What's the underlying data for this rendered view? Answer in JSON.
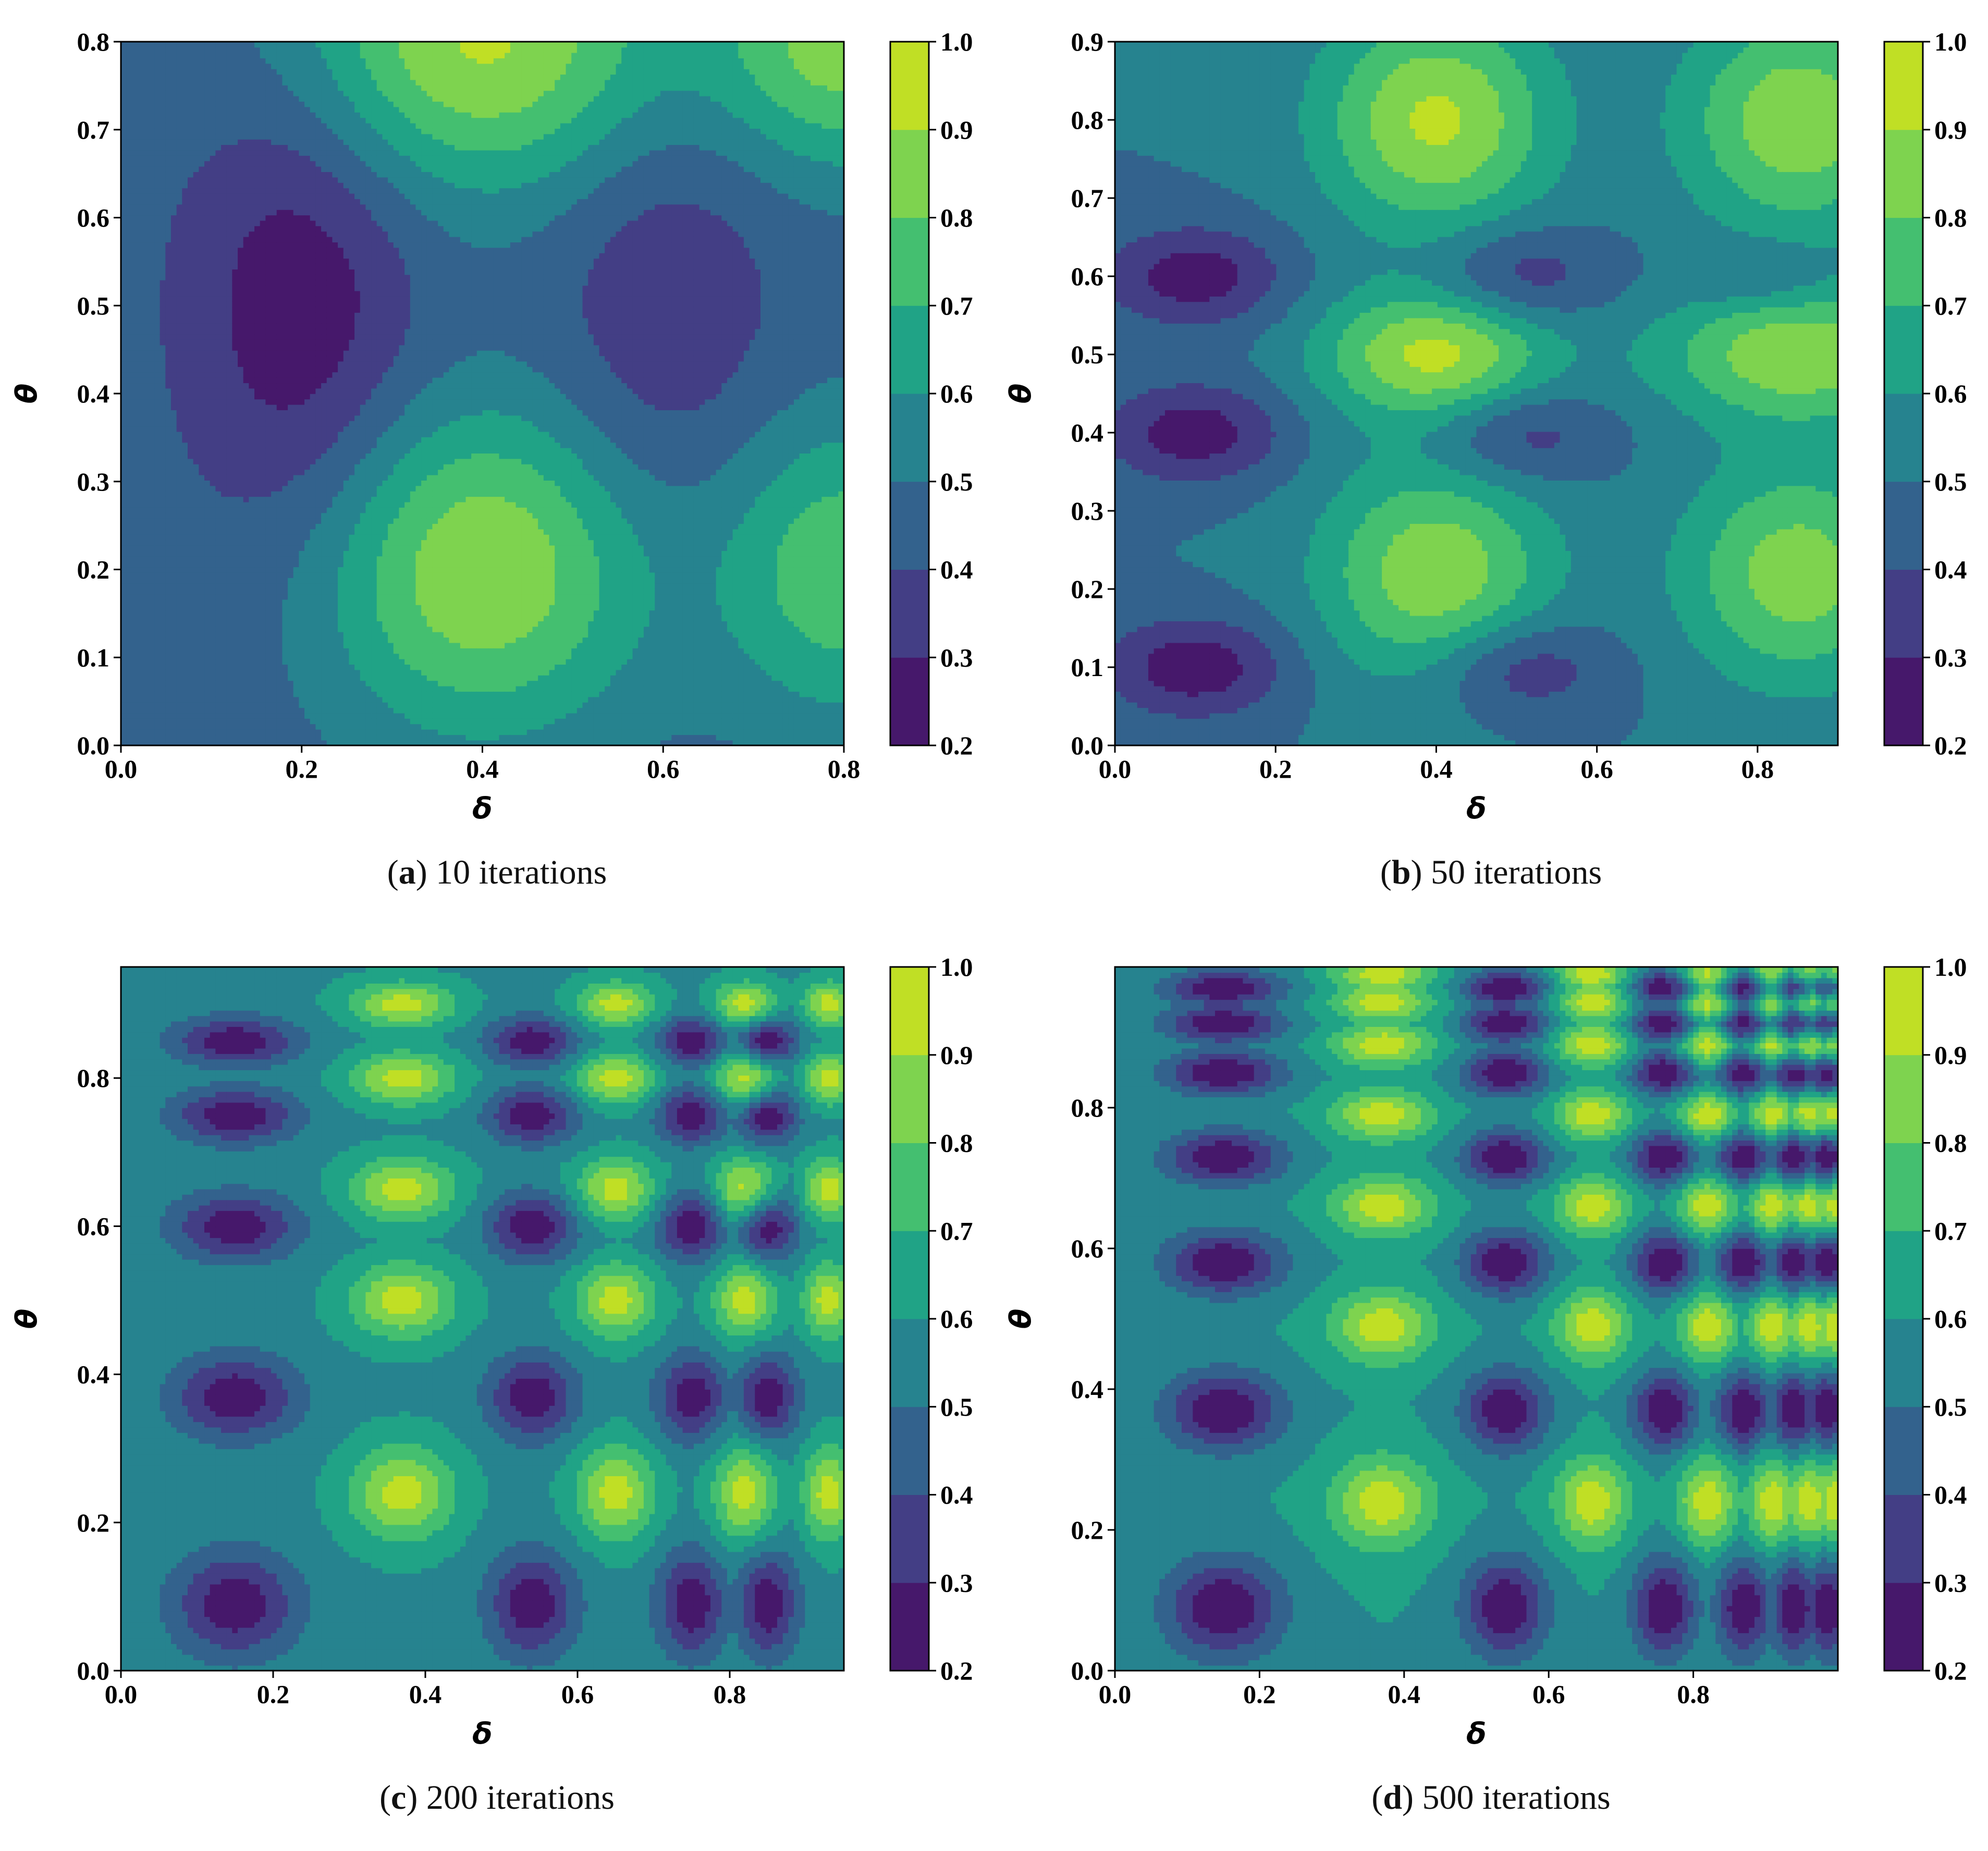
{
  "colormap": {
    "levels": [
      0.2,
      0.3,
      0.4,
      0.5,
      0.6,
      0.7,
      0.8,
      0.9,
      1.0
    ],
    "colors": [
      "#46186b",
      "#433e85",
      "#33628d",
      "#26838f",
      "#20a386",
      "#44bf70",
      "#7ed34f",
      "#c0df25"
    ],
    "lines": [
      "#47297a",
      "#3d4f8b",
      "#2d728e",
      "#21938b",
      "#35b479",
      "#65cb5e",
      "#a8db34",
      "#dde318"
    ]
  },
  "chart_data": [
    {
      "type": "contour",
      "panel_letter": "a",
      "caption_text": "10 iterations",
      "xlabel": "δ",
      "ylabel": "θ",
      "xlim": [
        0.0,
        0.8
      ],
      "ylim": [
        0.0,
        0.8
      ],
      "xticks": [
        "0.0",
        "0.2",
        "0.4",
        "0.6",
        "0.8"
      ],
      "yticks": [
        "0.0",
        "0.1",
        "0.2",
        "0.3",
        "0.4",
        "0.5",
        "0.6",
        "0.7",
        "0.8"
      ],
      "colorbar_ticks": [
        "0.2",
        "0.3",
        "0.4",
        "0.5",
        "0.6",
        "0.7",
        "0.8",
        "0.9",
        "1.0"
      ],
      "background_value": 0.45,
      "features": [
        {
          "x": 0.2,
          "y": 0.5,
          "sx": 0.09,
          "sy": 0.2,
          "v": 0.22
        },
        {
          "x": 0.6,
          "y": 0.5,
          "sx": 0.09,
          "sy": 0.2,
          "v": 0.31
        },
        {
          "x": 0.4,
          "y": 0.2,
          "sx": 0.13,
          "sy": 0.13,
          "v": 0.9
        },
        {
          "x": 0.4,
          "y": 0.8,
          "sx": 0.15,
          "sy": 0.12,
          "v": 0.92
        },
        {
          "x": 0.8,
          "y": 0.2,
          "sx": 0.1,
          "sy": 0.12,
          "v": 0.78
        },
        {
          "x": 0.8,
          "y": 0.8,
          "sx": 0.1,
          "sy": 0.1,
          "v": 0.85
        }
      ],
      "contour_lines": false
    },
    {
      "type": "contour",
      "panel_letter": "b",
      "caption_text": "50 iterations",
      "xlabel": "δ",
      "ylabel": "θ",
      "xlim": [
        0.0,
        0.9
      ],
      "ylim": [
        0.0,
        0.9
      ],
      "xticks": [
        "0.0",
        "0.2",
        "0.4",
        "0.6",
        "0.8"
      ],
      "yticks": [
        "0.0",
        "0.1",
        "0.2",
        "0.3",
        "0.4",
        "0.5",
        "0.6",
        "0.7",
        "0.8",
        "0.9"
      ],
      "colorbar_ticks": [
        "0.2",
        "0.3",
        "0.4",
        "0.5",
        "0.6",
        "0.7",
        "0.8",
        "0.9",
        "1.0"
      ],
      "background_value": 0.5,
      "features": [
        {
          "x": 0.1,
          "y": 0.1,
          "sx": 0.08,
          "sy": 0.045,
          "v": 0.23
        },
        {
          "x": 0.1,
          "y": 0.4,
          "sx": 0.08,
          "sy": 0.045,
          "v": 0.24
        },
        {
          "x": 0.1,
          "y": 0.6,
          "sx": 0.08,
          "sy": 0.045,
          "v": 0.24
        },
        {
          "x": 0.5,
          "y": 0.1,
          "sx": 0.08,
          "sy": 0.045,
          "v": 0.28
        },
        {
          "x": 0.5,
          "y": 0.4,
          "sx": 0.08,
          "sy": 0.045,
          "v": 0.3
        },
        {
          "x": 0.5,
          "y": 0.6,
          "sx": 0.08,
          "sy": 0.045,
          "v": 0.3
        },
        {
          "x": 0.8,
          "y": 0.6,
          "sx": 0.06,
          "sy": 0.03,
          "v": 0.38
        },
        {
          "x": 0.4,
          "y": 0.5,
          "sx": 0.1,
          "sy": 0.06,
          "v": 0.93
        },
        {
          "x": 0.4,
          "y": 0.22,
          "sx": 0.1,
          "sy": 0.1,
          "v": 0.88
        },
        {
          "x": 0.4,
          "y": 0.8,
          "sx": 0.1,
          "sy": 0.1,
          "v": 0.92
        },
        {
          "x": 0.85,
          "y": 0.5,
          "sx": 0.12,
          "sy": 0.06,
          "v": 0.88
        },
        {
          "x": 0.85,
          "y": 0.22,
          "sx": 0.1,
          "sy": 0.1,
          "v": 0.86
        },
        {
          "x": 0.85,
          "y": 0.8,
          "sx": 0.1,
          "sy": 0.1,
          "v": 0.88
        }
      ],
      "contour_lines": false
    },
    {
      "type": "contour",
      "panel_letter": "c",
      "caption_text": "200 iterations",
      "xlabel": "δ",
      "ylabel": "θ",
      "xlim": [
        0.0,
        0.95
      ],
      "ylim": [
        0.0,
        0.95
      ],
      "xticks": [
        "0.0",
        "0.2",
        "0.4",
        "0.6",
        "0.8"
      ],
      "yticks": [
        "0.0",
        "0.2",
        "0.4",
        "0.6",
        "0.8"
      ],
      "colorbar_ticks": [
        "0.2",
        "0.3",
        "0.4",
        "0.5",
        "0.6",
        "0.7",
        "0.8",
        "0.9",
        "1.0"
      ],
      "background_value": 0.58,
      "xlows": [
        0.15,
        0.54,
        0.75,
        0.85
      ],
      "xhighs": [
        0.37,
        0.65,
        0.82,
        0.93
      ],
      "ylows": [
        0.09,
        0.37,
        0.6,
        0.75,
        0.85
      ],
      "yhighs": [
        0.24,
        0.5,
        0.65,
        0.8,
        0.9
      ],
      "low_value": 0.22,
      "high_value": 0.95,
      "contour_lines": true
    },
    {
      "type": "contour",
      "panel_letter": "d",
      "caption_text": "500 iterations",
      "xlabel": "δ",
      "ylabel": "θ",
      "xlim": [
        0.0,
        1.0
      ],
      "ylim": [
        0.0,
        1.0
      ],
      "xticks": [
        "0.0",
        "0.2",
        "0.4",
        "0.6",
        "0.8"
      ],
      "yticks": [
        "0.0",
        "0.2",
        "0.4",
        "0.6",
        "0.8"
      ],
      "colorbar_ticks": [
        "0.2",
        "0.3",
        "0.4",
        "0.5",
        "0.6",
        "0.7",
        "0.8",
        "0.9",
        "1.0"
      ],
      "background_value": 0.6,
      "xlows": [
        0.15,
        0.54,
        0.76,
        0.87,
        0.94,
        0.985
      ],
      "xhighs": [
        0.37,
        0.66,
        0.82,
        0.91,
        0.96,
        0.995
      ],
      "ylows": [
        0.09,
        0.37,
        0.58,
        0.73,
        0.85,
        0.92,
        0.97
      ],
      "yhighs": [
        0.24,
        0.49,
        0.66,
        0.79,
        0.89,
        0.95,
        0.99
      ],
      "low_value": 0.2,
      "high_value": 0.97,
      "contour_lines": true
    }
  ]
}
